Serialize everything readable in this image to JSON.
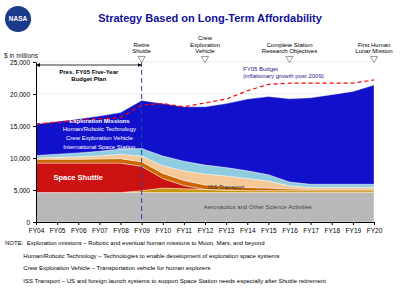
{
  "chart_data": {
    "type": "area",
    "title": "Strategy Based on Long-Term Affordability",
    "logo": "NASA",
    "ylabel": "$ in millions",
    "categories": [
      "FY04",
      "FY05",
      "FY06",
      "FY07",
      "FY08",
      "FY09",
      "FY10",
      "FY11",
      "FY12",
      "FY13",
      "FY14",
      "FY15",
      "FY16",
      "FY17",
      "FY18",
      "FY19",
      "FY20"
    ],
    "ylim": [
      0,
      25000
    ],
    "yticks": [
      0,
      {
        "value": 5000,
        "label": "5,000"
      },
      {
        "value": 10000,
        "label": "10,000"
      },
      {
        "value": 15000,
        "label": "15,000"
      },
      {
        "value": 20000,
        "label": "20,000"
      },
      {
        "value": 25000,
        "label": "25,000"
      }
    ],
    "grid": true,
    "stacked": true,
    "series": [
      {
        "name": "Aeronautics and Other Science Activities",
        "type": "area",
        "color": "#b8b8b8",
        "values": [
          4600,
          4600,
          4600,
          4600,
          4600,
          4600,
          4600,
          4600,
          4600,
          4600,
          4600,
          4600,
          4600,
          4600,
          4600,
          4600,
          4600
        ]
      },
      {
        "name": "ISS Transport",
        "type": "area",
        "color": "#c8960a",
        "values": [
          0,
          0,
          0,
          0,
          0,
          300,
          700,
          600,
          500,
          400,
          300,
          300,
          300,
          300,
          300,
          300,
          300
        ]
      },
      {
        "name": "Space Shuttle",
        "type": "area",
        "color": "#cc1111",
        "values": [
          4600,
          4600,
          4600,
          4600,
          4600,
          3800,
          1500,
          500,
          0,
          0,
          0,
          0,
          0,
          0,
          0,
          0,
          0
        ]
      },
      {
        "name": "International Space Station",
        "type": "area",
        "color": "#cc6600",
        "values": [
          600,
          600,
          600,
          650,
          700,
          700,
          800,
          800,
          700,
          600,
          500,
          400,
          250,
          200,
          200,
          200,
          200
        ]
      },
      {
        "name": "Crew Exploration Vehicle",
        "type": "area",
        "color": "#f5c897",
        "values": [
          200,
          300,
          400,
          500,
          700,
          900,
          1200,
          1500,
          1700,
          1600,
          1400,
          1100,
          500,
          300,
          300,
          300,
          300
        ]
      },
      {
        "name": "Human/Robotic Technology",
        "type": "area",
        "color": "#90cce0",
        "values": [
          400,
          500,
          600,
          700,
          800,
          1200,
          1500,
          1500,
          1400,
          1300,
          1200,
          1000,
          600,
          500,
          500,
          500,
          500
        ]
      },
      {
        "name": "Exploration Missions",
        "type": "area",
        "color": "#1111cc",
        "values": [
          4900,
          5100,
          5300,
          5500,
          5700,
          7500,
          8200,
          8500,
          9100,
          10000,
          11200,
          12200,
          13000,
          13500,
          14000,
          14500,
          15500
        ]
      },
      {
        "name": "FY05 Budget\n(inflationary growth post 2009)",
        "type": "line",
        "line_style": "dashed",
        "color": "red",
        "values": [
          15300,
          15600,
          15900,
          16100,
          16300,
          18300,
          18500,
          18000,
          18600,
          19200,
          20500,
          21500,
          21700,
          21700,
          21700,
          21700,
          22200
        ]
      }
    ],
    "vlines": [
      "FY09"
    ],
    "annotations": [
      {
        "text": "Retire\nShuttle",
        "x": "FY09"
      },
      {
        "text": "Crew\nExploration\nVehicle",
        "x": "FY12"
      },
      {
        "text": "Complete Station\nResearch Objectives",
        "x": "FY16"
      },
      {
        "text": "First Human\nLunar Mission",
        "x": "FY20"
      }
    ],
    "bracket": {
      "text": "Pres. FY05 Five-Year\nBudget Plan",
      "from": "FY04",
      "to": "FY09"
    },
    "notes": [
      "NOTE:  Exploration missions – Robotic and eventual human missions to Moon, Mars, and beyond",
      "           Human/Robotic Technology – Technologies to enable development of exploration space systems",
      "           Crew Exploration Vehicle – Transportation vehicle for human explorers",
      "           ISS Transport – US and foreign launch systems to support Space Station needs especially after Shuttle retirement"
    ]
  }
}
